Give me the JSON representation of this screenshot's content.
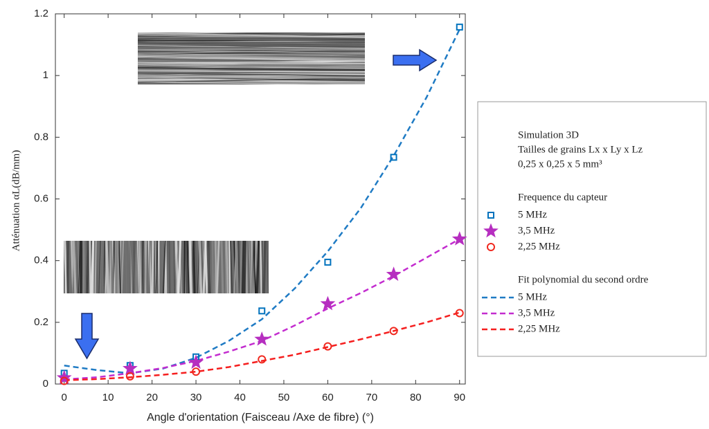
{
  "chart_data": {
    "type": "scatter",
    "xlabel": "Angle d'orientation (Faisceau /Axe de fibre) (°)",
    "ylabel": "Atténuation αL(dB/mm)",
    "xlim": [
      -2,
      91.3
    ],
    "ylim": [
      0,
      1.2
    ],
    "xticks": [
      0,
      10,
      20,
      30,
      40,
      50,
      60,
      70,
      80,
      90
    ],
    "yticks": [
      0,
      0.2,
      0.4,
      0.6,
      0.8,
      1,
      1.2
    ],
    "legend_header": [
      "Simulation 3D",
      "Tailles de grains Lx x Ly x Lz",
      "0,25 x 0,25 x 5 mm³"
    ],
    "legend_group_titles": [
      "Frequence du capteur",
      "Fit polynomial du second ordre"
    ],
    "series": [
      {
        "name": "5 MHz",
        "color": "#0072bd",
        "marker": "square",
        "group": 0,
        "x": [
          0,
          15,
          30,
          45,
          60,
          75,
          90
        ],
        "values": [
          0.035,
          0.06,
          0.088,
          0.237,
          0.395,
          0.735,
          1.157
        ]
      },
      {
        "name": "3,5 MHz",
        "color": "#b62ec0",
        "marker": "star",
        "group": 0,
        "x": [
          0,
          15,
          30,
          45,
          60,
          75,
          90
        ],
        "values": [
          0.02,
          0.05,
          0.07,
          0.145,
          0.26,
          0.355,
          0.47
        ]
      },
      {
        "name": "2,25 MHz",
        "color": "#f0281e",
        "marker": "circle",
        "group": 0,
        "x": [
          0,
          15,
          30,
          45,
          60,
          75,
          90
        ],
        "values": [
          0.01,
          0.025,
          0.04,
          0.08,
          0.122,
          0.172,
          0.23
        ]
      },
      {
        "name": "5 MHz",
        "color": "#1f7bc4",
        "marker": "dashed",
        "group": 1,
        "x": [
          0,
          7.5,
          15,
          22.5,
          30,
          37.5,
          45,
          52.5,
          60,
          67.5,
          75,
          82.5,
          90
        ],
        "values": [
          0.06,
          0.045,
          0.035,
          0.05,
          0.085,
          0.14,
          0.21,
          0.31,
          0.43,
          0.57,
          0.74,
          0.93,
          1.15
        ]
      },
      {
        "name": "3,5 MHz",
        "color": "#c32ccf",
        "marker": "dashed",
        "group": 1,
        "x": [
          0,
          7.5,
          15,
          22.5,
          30,
          37.5,
          45,
          52.5,
          60,
          67.5,
          75,
          82.5,
          90
        ],
        "values": [
          0.015,
          0.022,
          0.035,
          0.052,
          0.075,
          0.105,
          0.14,
          0.19,
          0.245,
          0.295,
          0.35,
          0.41,
          0.47
        ]
      },
      {
        "name": "2,25 MHz",
        "color": "#f51e1e",
        "marker": "dashed",
        "group": 1,
        "x": [
          0,
          7.5,
          15,
          22.5,
          30,
          37.5,
          45,
          52.5,
          60,
          67.5,
          75,
          82.5,
          90
        ],
        "values": [
          0.012,
          0.016,
          0.022,
          0.03,
          0.04,
          0.055,
          0.075,
          0.095,
          0.12,
          0.145,
          0.172,
          0.2,
          0.232
        ]
      }
    ]
  }
}
